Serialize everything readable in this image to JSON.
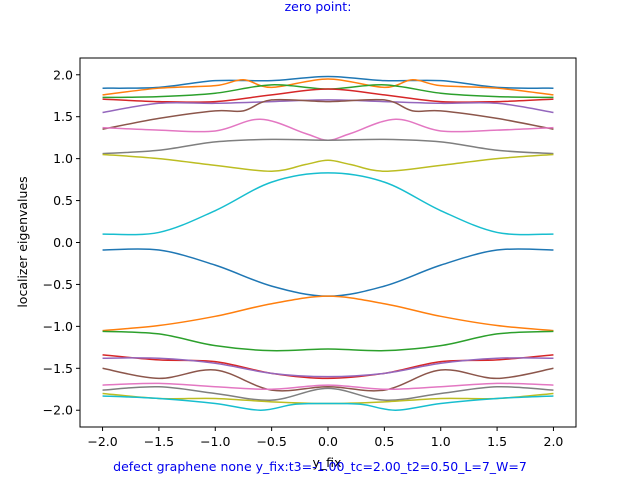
{
  "chart_data": {
    "type": "line",
    "title": "zero point:",
    "xlabel": "y_fix",
    "ylabel": "localizer eigenvalues",
    "caption": "defect graphene none y_fix:t3=-1.00_tc=2.00_t2=0.50_L=7_W=7",
    "xlim": [
      -2.2,
      2.2
    ],
    "ylim": [
      -2.2,
      2.2
    ],
    "xticks": [
      -2.0,
      -1.5,
      -1.0,
      -0.5,
      0.0,
      0.5,
      1.0,
      1.5,
      2.0
    ],
    "xtick_labels": [
      "−2.0",
      "−1.5",
      "−1.0",
      "−0.5",
      "0.0",
      "0.5",
      "1.0",
      "1.5",
      "2.0"
    ],
    "yticks": [
      -2.0,
      -1.5,
      -1.0,
      -0.5,
      0.0,
      0.5,
      1.0,
      1.5,
      2.0
    ],
    "ytick_labels": [
      "−2.0",
      "−1.5",
      "−1.0",
      "−0.5",
      "0.0",
      "0.5",
      "1.0",
      "1.5",
      "2.0"
    ],
    "grid": false,
    "series": [
      {
        "color": "#1f77b4",
        "x": [
          -2.0,
          -1.5,
          -1.0,
          -0.5,
          0.0,
          0.5,
          1.0,
          1.5,
          2.0
        ],
        "y": [
          1.84,
          1.85,
          1.93,
          1.93,
          1.98,
          1.93,
          1.93,
          1.85,
          1.84
        ]
      },
      {
        "color": "#ff7f0e",
        "x": [
          -2.0,
          -1.5,
          -1.0,
          -0.75,
          -0.5,
          0.0,
          0.5,
          0.75,
          1.0,
          1.5,
          2.0
        ],
        "y": [
          1.76,
          1.84,
          1.87,
          1.94,
          1.85,
          1.95,
          1.85,
          1.94,
          1.87,
          1.84,
          1.76
        ]
      },
      {
        "color": "#2ca02c",
        "x": [
          -2.0,
          -1.5,
          -1.0,
          -0.5,
          0.0,
          0.5,
          1.0,
          1.5,
          2.0
        ],
        "y": [
          1.73,
          1.74,
          1.78,
          1.88,
          1.83,
          1.88,
          1.78,
          1.74,
          1.73
        ]
      },
      {
        "color": "#d62728",
        "x": [
          -2.0,
          -1.5,
          -1.0,
          -0.5,
          0.0,
          0.5,
          1.0,
          1.5,
          2.0
        ],
        "y": [
          1.71,
          1.68,
          1.68,
          1.76,
          1.83,
          1.76,
          1.68,
          1.68,
          1.71
        ]
      },
      {
        "color": "#9467bd",
        "x": [
          -2.0,
          -1.5,
          -1.0,
          -0.5,
          0.0,
          0.5,
          1.0,
          1.5,
          2.0
        ],
        "y": [
          1.55,
          1.66,
          1.66,
          1.68,
          1.7,
          1.68,
          1.66,
          1.66,
          1.55
        ]
      },
      {
        "color": "#8c564b",
        "x": [
          -2.0,
          -1.5,
          -1.0,
          -0.75,
          -0.5,
          0.0,
          0.5,
          0.75,
          1.0,
          1.5,
          2.0
        ],
        "y": [
          1.35,
          1.48,
          1.57,
          1.57,
          1.7,
          1.68,
          1.7,
          1.57,
          1.57,
          1.48,
          1.35
        ]
      },
      {
        "color": "#e377c2",
        "x": [
          -2.0,
          -1.5,
          -1.0,
          -0.6,
          -0.2,
          0.0,
          0.2,
          0.6,
          1.0,
          1.5,
          2.0
        ],
        "y": [
          1.37,
          1.34,
          1.33,
          1.47,
          1.3,
          1.22,
          1.3,
          1.47,
          1.33,
          1.34,
          1.37
        ]
      },
      {
        "color": "#7f7f7f",
        "x": [
          -2.0,
          -1.5,
          -1.0,
          -0.5,
          0.0,
          0.5,
          1.0,
          1.5,
          2.0
        ],
        "y": [
          1.06,
          1.1,
          1.2,
          1.23,
          1.22,
          1.23,
          1.2,
          1.1,
          1.06
        ]
      },
      {
        "color": "#bcbd22",
        "x": [
          -2.0,
          -1.5,
          -1.0,
          -0.5,
          -0.2,
          0.0,
          0.2,
          0.5,
          1.0,
          1.5,
          2.0
        ],
        "y": [
          1.05,
          1.0,
          0.92,
          0.85,
          0.93,
          0.98,
          0.93,
          0.85,
          0.92,
          1.0,
          1.05
        ]
      },
      {
        "color": "#17becf",
        "x": [
          -2.0,
          -1.5,
          -1.0,
          -0.5,
          0.0,
          0.5,
          1.0,
          1.5,
          2.0
        ],
        "y": [
          0.1,
          0.12,
          0.38,
          0.72,
          0.83,
          0.72,
          0.38,
          0.12,
          0.1
        ]
      },
      {
        "color": "#1f77b4",
        "x": [
          -2.0,
          -1.5,
          -1.0,
          -0.5,
          0.0,
          0.5,
          1.0,
          1.5,
          2.0
        ],
        "y": [
          -0.09,
          -0.09,
          -0.27,
          -0.52,
          -0.64,
          -0.52,
          -0.27,
          -0.09,
          -0.09
        ]
      },
      {
        "color": "#ff7f0e",
        "x": [
          -2.0,
          -1.5,
          -1.0,
          -0.5,
          0.0,
          0.5,
          1.0,
          1.5,
          2.0
        ],
        "y": [
          -1.05,
          -0.99,
          -0.88,
          -0.73,
          -0.64,
          -0.73,
          -0.88,
          -0.99,
          -1.05
        ]
      },
      {
        "color": "#2ca02c",
        "x": [
          -2.0,
          -1.5,
          -1.0,
          -0.5,
          0.0,
          0.5,
          1.0,
          1.5,
          2.0
        ],
        "y": [
          -1.06,
          -1.09,
          -1.23,
          -1.29,
          -1.27,
          -1.29,
          -1.23,
          -1.09,
          -1.06
        ]
      },
      {
        "color": "#d62728",
        "x": [
          -2.0,
          -1.5,
          -1.0,
          -0.5,
          0.0,
          0.5,
          1.0,
          1.5,
          2.0
        ],
        "y": [
          -1.34,
          -1.4,
          -1.42,
          -1.56,
          -1.62,
          -1.56,
          -1.42,
          -1.4,
          -1.34
        ]
      },
      {
        "color": "#9467bd",
        "x": [
          -2.0,
          -1.5,
          -1.0,
          -0.5,
          0.0,
          0.5,
          1.0,
          1.5,
          2.0
        ],
        "y": [
          -1.38,
          -1.38,
          -1.44,
          -1.56,
          -1.6,
          -1.56,
          -1.44,
          -1.38,
          -1.38
        ]
      },
      {
        "color": "#8c564b",
        "x": [
          -2.0,
          -1.5,
          -1.0,
          -0.5,
          0.0,
          0.5,
          1.0,
          1.5,
          2.0
        ],
        "y": [
          -1.5,
          -1.62,
          -1.52,
          -1.76,
          -1.72,
          -1.76,
          -1.52,
          -1.62,
          -1.5
        ]
      },
      {
        "color": "#e377c2",
        "x": [
          -2.0,
          -1.5,
          -1.0,
          -0.5,
          0.0,
          0.5,
          1.0,
          1.5,
          2.0
        ],
        "y": [
          -1.7,
          -1.68,
          -1.72,
          -1.75,
          -1.7,
          -1.75,
          -1.72,
          -1.68,
          -1.7
        ]
      },
      {
        "color": "#7f7f7f",
        "x": [
          -2.0,
          -1.5,
          -1.0,
          -0.5,
          0.0,
          0.5,
          1.0,
          1.5,
          2.0
        ],
        "y": [
          -1.76,
          -1.72,
          -1.8,
          -1.88,
          -1.74,
          -1.88,
          -1.8,
          -1.72,
          -1.76
        ]
      },
      {
        "color": "#bcbd22",
        "x": [
          -2.0,
          -1.5,
          -1.0,
          -0.5,
          0.0,
          0.5,
          1.0,
          1.5,
          2.0
        ],
        "y": [
          -1.8,
          -1.86,
          -1.86,
          -1.9,
          -1.92,
          -1.9,
          -1.86,
          -1.86,
          -1.8
        ]
      },
      {
        "color": "#17becf",
        "x": [
          -2.0,
          -1.5,
          -1.0,
          -0.6,
          -0.3,
          0.0,
          0.3,
          0.6,
          1.0,
          1.5,
          2.0
        ],
        "y": [
          -1.83,
          -1.86,
          -1.92,
          -2.0,
          -1.93,
          -1.92,
          -1.93,
          -2.0,
          -1.92,
          -1.86,
          -1.83
        ]
      }
    ]
  }
}
